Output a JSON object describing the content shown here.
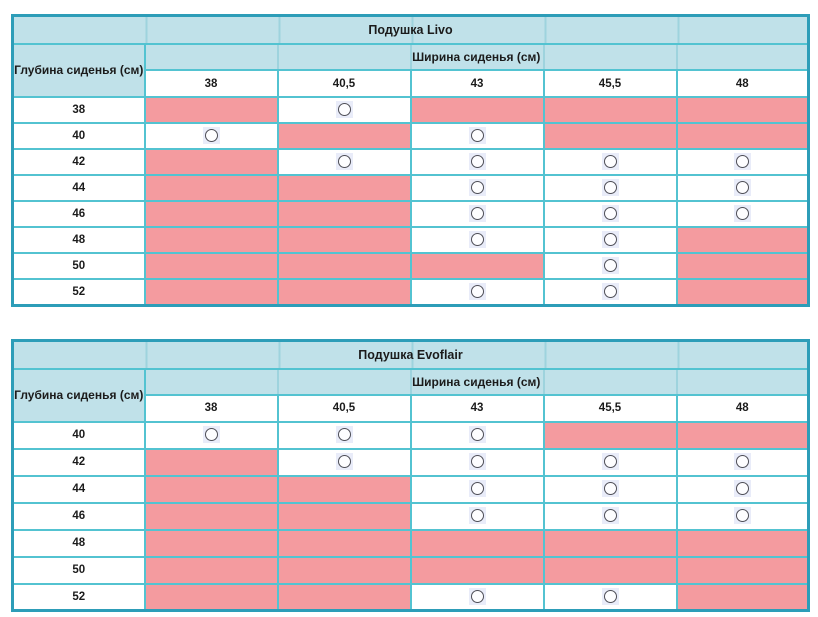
{
  "colors": {
    "header_bg": "#c0e1e9",
    "unavailable_pink": "#f49b9f",
    "grid_border": "#53c3d1",
    "outer_border": "#2d9db8",
    "circle_highlight_bg": "#e9ecf9",
    "circle_stroke": "#4e4e57"
  },
  "symbols": {
    "available": "circle-icon",
    "unavailable": "pink-filled-cell"
  },
  "chart_data": [
    {
      "type": "table",
      "title": "Подушка Livo",
      "row_header": "Глубина сиденья (см)",
      "col_group_header": "Ширина сиденья (см)",
      "columns": [
        "38",
        "40,5",
        "43",
        "45,5",
        "48"
      ],
      "rows": [
        {
          "depth": "38",
          "cells": [
            "na",
            "ok",
            "na",
            "na",
            "na"
          ]
        },
        {
          "depth": "40",
          "cells": [
            "ok",
            "na",
            "ok",
            "na",
            "na"
          ]
        },
        {
          "depth": "42",
          "cells": [
            "na",
            "ok",
            "ok",
            "ok",
            "ok"
          ]
        },
        {
          "depth": "44",
          "cells": [
            "na",
            "na",
            "ok",
            "ok",
            "ok"
          ]
        },
        {
          "depth": "46",
          "cells": [
            "na",
            "na",
            "ok",
            "ok",
            "ok"
          ]
        },
        {
          "depth": "48",
          "cells": [
            "na",
            "na",
            "ok",
            "ok",
            "na"
          ]
        },
        {
          "depth": "50",
          "cells": [
            "na",
            "na",
            "na",
            "ok",
            "na"
          ]
        },
        {
          "depth": "52",
          "cells": [
            "na",
            "na",
            "ok",
            "ok",
            "na"
          ]
        }
      ]
    },
    {
      "type": "table",
      "title": "Подушка Evoflair",
      "row_header": "Глубина сиденья (см)",
      "col_group_header": "Ширина сиденья (см)",
      "columns": [
        "38",
        "40,5",
        "43",
        "45,5",
        "48"
      ],
      "rows": [
        {
          "depth": "40",
          "cells": [
            "ok",
            "ok",
            "ok",
            "na",
            "na"
          ]
        },
        {
          "depth": "42",
          "cells": [
            "na",
            "ok",
            "ok",
            "ok",
            "ok"
          ]
        },
        {
          "depth": "44",
          "cells": [
            "na",
            "na",
            "ok",
            "ok",
            "ok"
          ]
        },
        {
          "depth": "46",
          "cells": [
            "na",
            "na",
            "ok",
            "ok",
            "ok"
          ]
        },
        {
          "depth": "48",
          "cells": [
            "na",
            "na",
            "na",
            "na",
            "na"
          ]
        },
        {
          "depth": "50",
          "cells": [
            "na",
            "na",
            "na",
            "na",
            "na"
          ]
        },
        {
          "depth": "52",
          "cells": [
            "na",
            "na",
            "ok",
            "ok",
            "na"
          ]
        }
      ]
    }
  ]
}
